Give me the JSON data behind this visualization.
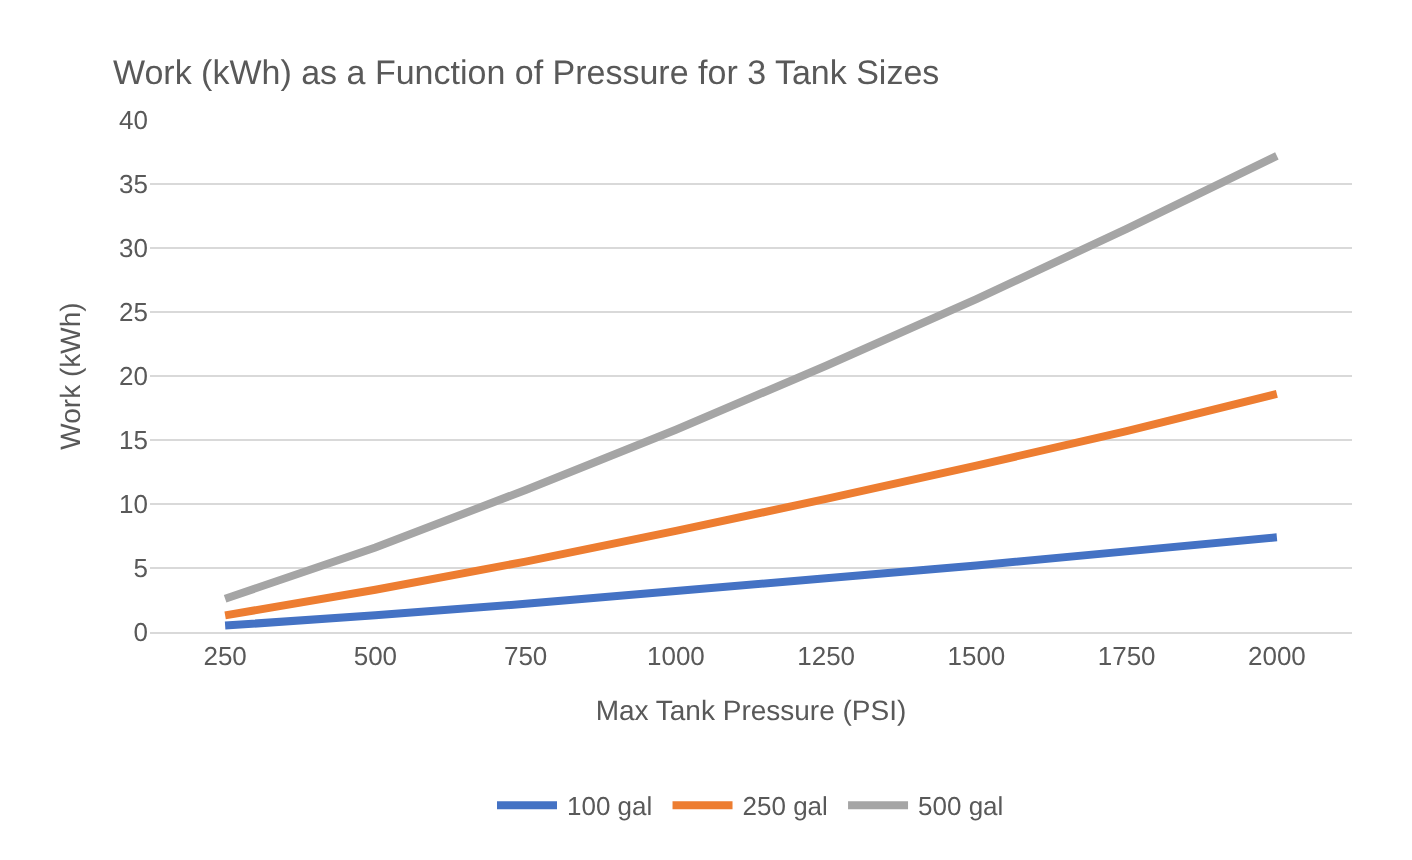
{
  "chart_data": {
    "type": "line",
    "title": "Work (kWh) as a Function of Pressure for 3 Tank Sizes",
    "xlabel": "Max Tank Pressure (PSI)",
    "ylabel": "Work (kWh)",
    "categories": [
      "250",
      "500",
      "750",
      "1000",
      "1250",
      "1500",
      "1750",
      "2000"
    ],
    "series": [
      {
        "name": "100 gal",
        "color": "#4472c4",
        "values": [
          0.5,
          1.3,
          2.2,
          3.2,
          4.2,
          5.2,
          6.3,
          7.4
        ]
      },
      {
        "name": "250 gal",
        "color": "#ed7d31",
        "values": [
          1.3,
          3.3,
          5.5,
          7.9,
          10.4,
          13.0,
          15.7,
          18.6
        ]
      },
      {
        "name": "500 gal",
        "color": "#a5a5a5",
        "values": [
          2.6,
          6.6,
          11.1,
          15.8,
          20.8,
          26.0,
          31.5,
          37.2
        ]
      }
    ],
    "ylim": [
      0,
      40
    ],
    "yticks": [
      0,
      5,
      10,
      15,
      20,
      25,
      30,
      35,
      40
    ],
    "grid": "y",
    "legend": "bottom",
    "marker": "none",
    "line_style": "solid"
  }
}
